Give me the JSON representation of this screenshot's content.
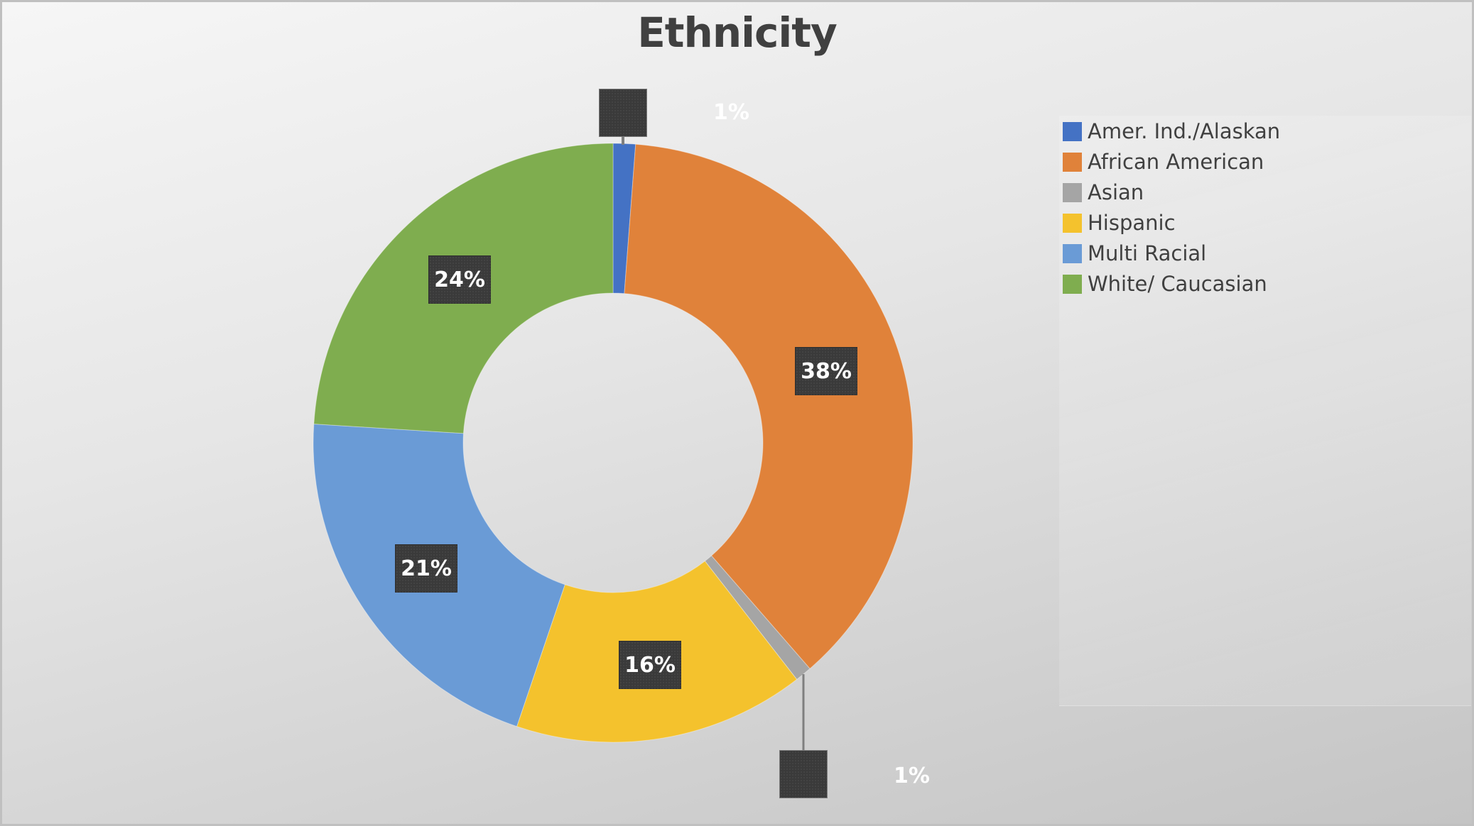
{
  "chart_data": {
    "type": "pie",
    "variant": "donut",
    "title": "Ethnicity",
    "categories": [
      "Amer. Ind./Alaskan",
      "African American",
      "Asian",
      "Hispanic",
      "Multi Racial",
      "White/ Caucasian"
    ],
    "values": [
      1,
      38,
      1,
      16,
      21,
      24
    ],
    "value_labels": [
      "1%",
      "38%",
      "1%",
      "16%",
      "21%",
      "24%"
    ],
    "colors": [
      "#4472c4",
      "#e0823a",
      "#a5a5a5",
      "#f4c22d",
      "#6a9bd6",
      "#7fad4f"
    ],
    "hole_ratio": 0.5,
    "start_angle_deg": 0,
    "direction": "clockwise",
    "legend_position": "right"
  },
  "title": "Ethnicity",
  "legend": {
    "items": [
      {
        "label": "Amer. Ind./Alaskan",
        "color": "#4472c4"
      },
      {
        "label": "African American",
        "color": "#e0823a"
      },
      {
        "label": "Asian",
        "color": "#a5a5a5"
      },
      {
        "label": "Hispanic",
        "color": "#f4c22d"
      },
      {
        "label": "Multi Racial",
        "color": "#6a9bd6"
      },
      {
        "label": "White/ Caucasian",
        "color": "#7fad4f"
      }
    ]
  },
  "labels": {
    "amer_ind": "1%",
    "african_american": "38%",
    "asian": "1%",
    "hispanic": "16%",
    "multi_racial": "21%",
    "white": "24%"
  }
}
